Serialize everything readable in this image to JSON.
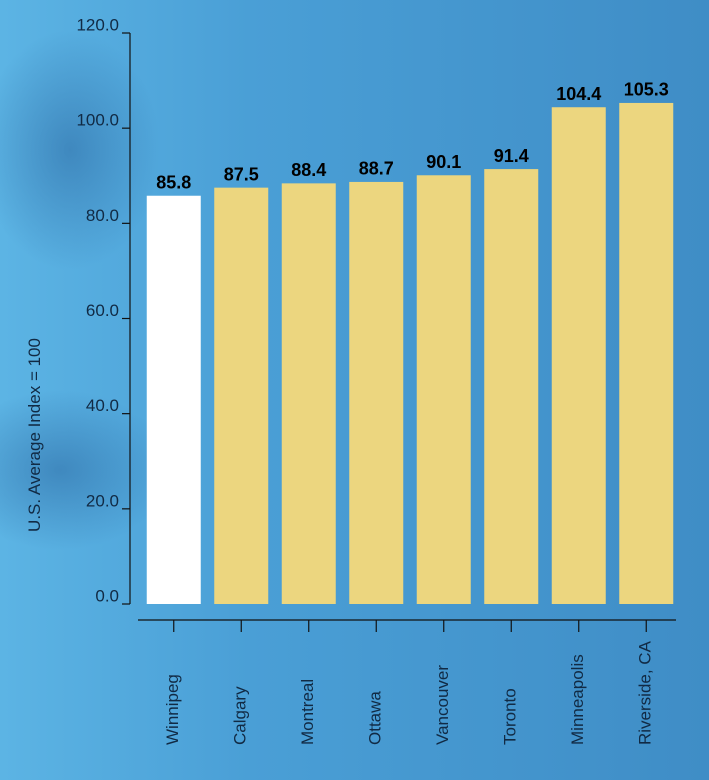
{
  "chart_data": {
    "type": "bar",
    "y_label": "U.S. Average Index = 100",
    "categories": [
      "Winnipeg",
      "Calgary",
      "Montreal",
      "Ottawa",
      "Vancouver",
      "Toronto",
      "Minneapolis",
      "Riverside, CA"
    ],
    "values": [
      85.8,
      87.5,
      88.4,
      88.7,
      90.1,
      91.4,
      104.4,
      105.3
    ],
    "colors": [
      "#ffffff",
      "#ecd67f",
      "#ecd67f",
      "#ecd67f",
      "#ecd67f",
      "#ecd67f",
      "#ecd67f",
      "#ecd67f"
    ],
    "ylim": [
      0,
      120
    ],
    "yticks": [
      {
        "value": 0,
        "label": "0.0"
      },
      {
        "value": 20,
        "label": "20.0"
      },
      {
        "value": 40,
        "label": "40.0"
      },
      {
        "value": 60,
        "label": "60.0"
      },
      {
        "value": 80,
        "label": "80.0"
      },
      {
        "value": 100,
        "label": "100.0"
      },
      {
        "value": 120,
        "label": "120.0"
      }
    ],
    "grid": false
  }
}
